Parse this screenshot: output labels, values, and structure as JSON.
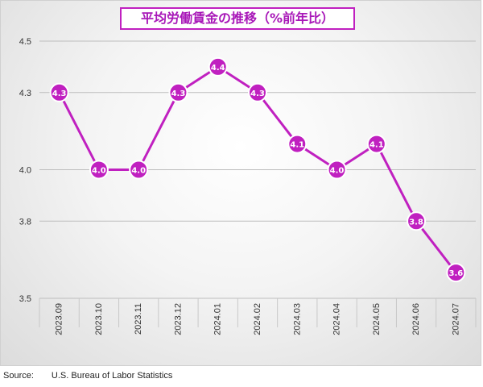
{
  "chart_data": {
    "type": "line",
    "title": "平均労働賃金の推移（%前年比）",
    "categories": [
      "2023.09",
      "2023.10",
      "2023.11",
      "2023.12",
      "2024.01",
      "2024.02",
      "2024.03",
      "2024.04",
      "2024.05",
      "2024.06",
      "2024.07"
    ],
    "series": [
      {
        "values": [
          4.3,
          4.0,
          4.0,
          4.3,
          4.4,
          4.3,
          4.1,
          4.0,
          4.1,
          3.8,
          3.6
        ],
        "labels": [
          "4.3",
          "4.0",
          "4.0",
          "4.3",
          "4.4",
          "4.3",
          "4.1",
          "4.0",
          "4.1",
          "3.8",
          "3.6"
        ],
        "color": "#c020c0"
      }
    ],
    "y_ticks": [
      "3.5",
      "3.8",
      "4.0",
      "4.3",
      "4.5"
    ],
    "ylim": [
      3.5,
      4.5
    ],
    "grid": true,
    "legend": "none"
  },
  "source": {
    "label": "Source:",
    "value": "U.S. Bureau of Labor Statistics"
  },
  "colors": {
    "line": "#c020c0",
    "marker_fill": "#c020c0",
    "marker_text": "#ffffff",
    "grid": "#bdbdbd",
    "title_border": "#c020c0",
    "title_text": "#a818b8"
  }
}
